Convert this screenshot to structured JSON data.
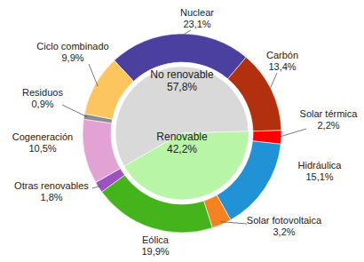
{
  "chart_data": {
    "type": "donut",
    "rings": [
      {
        "categories": [
          "Nuclear",
          "Carbón",
          "Solar térmica",
          "Hidráulica",
          "Solar fotovoltaica",
          "Eólica",
          "Otras renovables",
          "Cogeneración",
          "Residuos",
          "Ciclo combinado"
        ],
        "values": [
          23.1,
          13.4,
          2.2,
          15.1,
          3.2,
          19.9,
          1.8,
          10.5,
          0.9,
          9.9
        ],
        "value_labels": [
          "23,1%",
          "13,4%",
          "2,2%",
          "15,1%",
          "3,2%",
          "19,9%",
          "1,8%",
          "10,5%",
          "0,9%",
          "9,9%"
        ],
        "colors": [
          "#4b3fa0",
          "#b3300e",
          "#ff0000",
          "#2292d6",
          "#f58220",
          "#45b31c",
          "#9e52bf",
          "#e3a2d4",
          "#8c8c8c",
          "#fdc55e"
        ]
      },
      {
        "categories": [
          "No renovable",
          "Renovable"
        ],
        "values": [
          57.8,
          42.2
        ],
        "value_labels": [
          "57,8%",
          "42,2%"
        ],
        "colors": [
          "#d9d9d9",
          "#b8f5a6"
        ]
      }
    ],
    "data_labels": true
  }
}
